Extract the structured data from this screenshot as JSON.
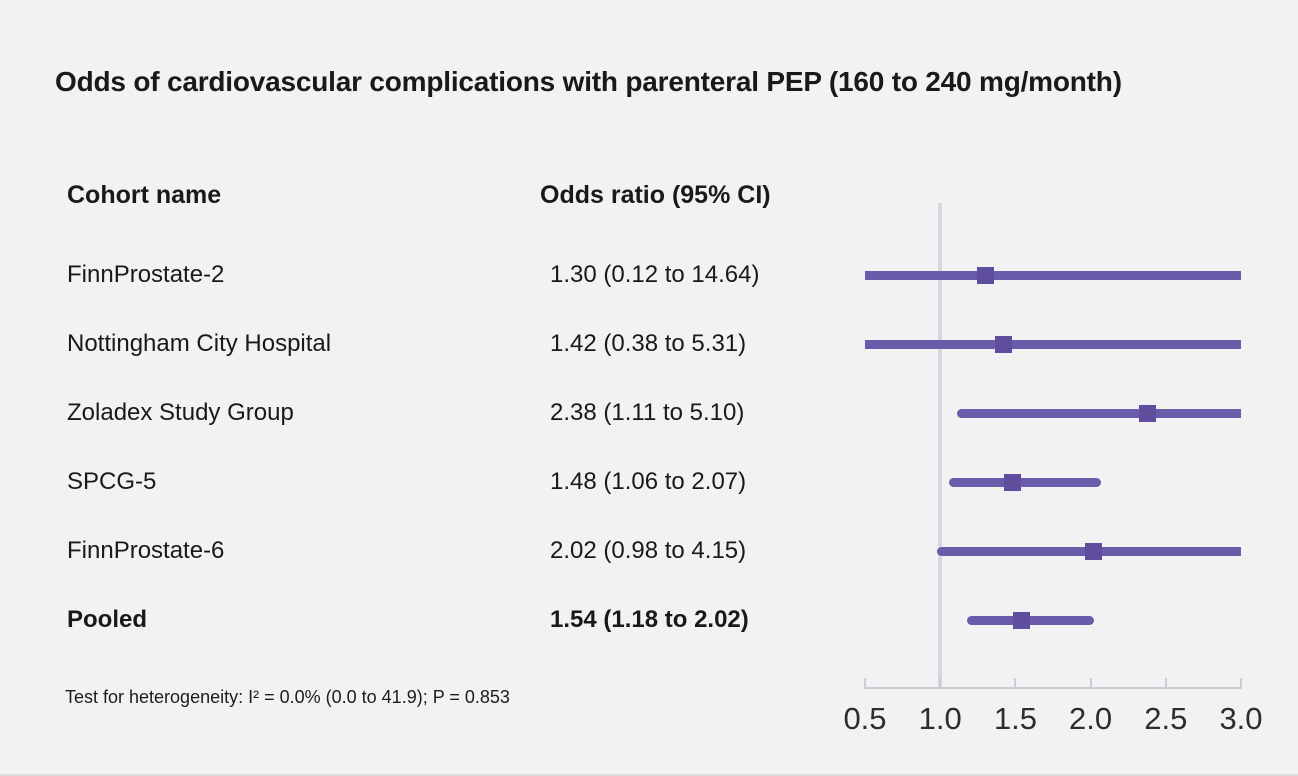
{
  "title": "Odds of cardiovascular complications with parenteral PEP (160 to 240 mg/month)",
  "table": {
    "cohort_header": "Cohort name",
    "or_header": "Odds ratio (95% CI)"
  },
  "footnote": "Test for heterogeneity: I² = 0.0% (0.0 to 41.9); P = 0.853",
  "chart_data": {
    "type": "forest",
    "title": "Odds of cardiovascular complications with parenteral PEP (160 to 240 mg/month)",
    "rows": [
      {
        "cohort": "FinnProstate-2",
        "or_label": "1.30 (0.12 to 14.64)",
        "estimate": 1.3,
        "ci_low": 0.12,
        "ci_high": 14.64,
        "pooled": false
      },
      {
        "cohort": "Nottingham City Hospital",
        "or_label": "1.42 (0.38 to 5.31)",
        "estimate": 1.42,
        "ci_low": 0.38,
        "ci_high": 5.31,
        "pooled": false
      },
      {
        "cohort": "Zoladex Study Group",
        "or_label": "2.38 (1.11 to 5.10)",
        "estimate": 2.38,
        "ci_low": 1.11,
        "ci_high": 5.1,
        "pooled": false
      },
      {
        "cohort": "SPCG-5",
        "or_label": "1.48 (1.06 to 2.07)",
        "estimate": 1.48,
        "ci_low": 1.06,
        "ci_high": 2.07,
        "pooled": false
      },
      {
        "cohort": "FinnProstate-6",
        "or_label": "2.02 (0.98 to 4.15)",
        "estimate": 2.02,
        "ci_low": 0.98,
        "ci_high": 4.15,
        "pooled": false
      },
      {
        "cohort": "Pooled",
        "or_label": "1.54 (1.18 to 2.02)",
        "estimate": 1.54,
        "ci_low": 1.18,
        "ci_high": 2.02,
        "pooled": true
      }
    ],
    "axis": {
      "min": 0.5,
      "max": 3.0,
      "ticks": [
        "0.5",
        "1.0",
        "1.5",
        "2.0",
        "2.5",
        "3.0"
      ],
      "tick_values": [
        0.5,
        1.0,
        1.5,
        2.0,
        2.5,
        3.0
      ],
      "reference_line": 1.0
    },
    "legend": "none",
    "grid": "off",
    "colors": {
      "bar": "#6a5caa",
      "marker": "#5e4e9d",
      "reference_line": "#d4d8e1",
      "axis": "#c9ced8",
      "background": "#f2f2f2"
    }
  }
}
